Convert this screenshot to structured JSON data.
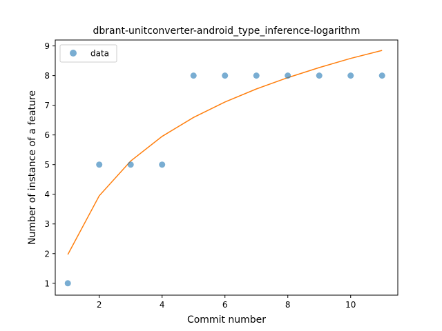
{
  "chart_data": {
    "type": "scatter",
    "title": "dbrant-unitconverter-android_type_inference-logarithm",
    "xlabel": "Commit number",
    "ylabel": "Number of instance of a feature",
    "xlim": [
      0.6,
      11.5
    ],
    "ylim": [
      0.6,
      9.2
    ],
    "xticks": [
      2,
      4,
      6,
      8,
      10
    ],
    "yticks": [
      1,
      2,
      3,
      4,
      5,
      6,
      7,
      8,
      9
    ],
    "grid": false,
    "legend_position": "top-left",
    "series": [
      {
        "name": "data",
        "kind": "scatter",
        "color": "#1f77b4",
        "x": [
          1,
          2,
          3,
          4,
          5,
          6,
          7,
          8,
          9,
          10,
          11
        ],
        "y": [
          1,
          5,
          5,
          5,
          8,
          8,
          8,
          8,
          8,
          8,
          8
        ]
      },
      {
        "kind": "line",
        "color": "#ff7f0e",
        "x": [
          1,
          2,
          3,
          4,
          5,
          6,
          7,
          8,
          9,
          10,
          11
        ],
        "y": [
          1.97,
          3.95,
          5.12,
          5.95,
          6.59,
          7.11,
          7.55,
          7.93,
          8.27,
          8.58,
          8.85
        ]
      }
    ]
  }
}
